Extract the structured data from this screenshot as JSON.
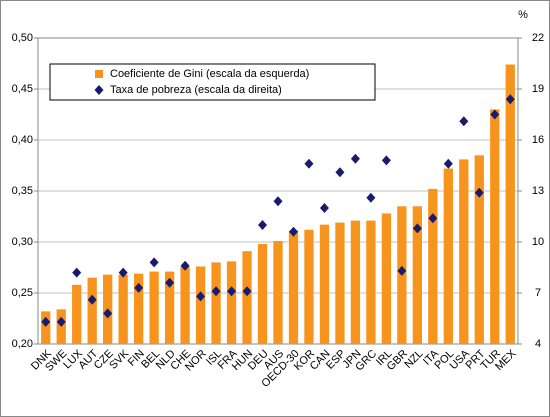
{
  "chart_data": {
    "type": "bar",
    "categories": [
      "DNK",
      "SWE",
      "LUX",
      "AUT",
      "CZE",
      "SVK",
      "FIN",
      "BEL",
      "NLD",
      "CHE",
      "NOR",
      "ISL",
      "FRA",
      "HUN",
      "DEU",
      "AUS",
      "OECD-30",
      "KOR",
      "CAN",
      "ESP",
      "JPN",
      "GRC",
      "IRL",
      "GBR",
      "NZL",
      "ITA",
      "POL",
      "USA",
      "PRT",
      "TUR",
      "MEX"
    ],
    "series": [
      {
        "name": "Coeficiente de Gini (escala da esquerda)",
        "type": "bar",
        "color": "#f7941d",
        "values": [
          0.232,
          0.234,
          0.258,
          0.265,
          0.268,
          0.268,
          0.269,
          0.271,
          0.271,
          0.276,
          0.276,
          0.28,
          0.281,
          0.291,
          0.298,
          0.301,
          0.311,
          0.312,
          0.317,
          0.319,
          0.321,
          0.321,
          0.328,
          0.335,
          0.335,
          0.352,
          0.372,
          0.381,
          0.385,
          0.43,
          0.474
        ]
      },
      {
        "name": "Taxa de pobreza (escala da direita)",
        "type": "scatter",
        "axis": "y2",
        "color": "#1a1a6e",
        "values": [
          5.3,
          5.3,
          8.2,
          6.6,
          5.8,
          8.2,
          7.3,
          8.8,
          7.6,
          8.6,
          6.8,
          7.1,
          7.1,
          7.1,
          11.0,
          12.4,
          10.6,
          14.6,
          12.0,
          14.1,
          14.9,
          12.6,
          14.8,
          8.3,
          10.8,
          11.4,
          14.6,
          17.1,
          12.9,
          17.5,
          18.4
        ]
      }
    ],
    "ylim": [
      0.2,
      0.5
    ],
    "yticks": [
      {
        "value": 0.2,
        "label": "0,20"
      },
      {
        "value": 0.25,
        "label": "0,25"
      },
      {
        "value": 0.3,
        "label": "0,30"
      },
      {
        "value": 0.35,
        "label": "0,35"
      },
      {
        "value": 0.4,
        "label": "0,40"
      },
      {
        "value": 0.45,
        "label": "0,45"
      },
      {
        "value": 0.5,
        "label": "0,50"
      }
    ],
    "y2lim": [
      4,
      22
    ],
    "y2ticks": [
      4,
      7,
      10,
      13,
      16,
      19,
      22
    ],
    "y2_label": "%",
    "grid": true
  }
}
